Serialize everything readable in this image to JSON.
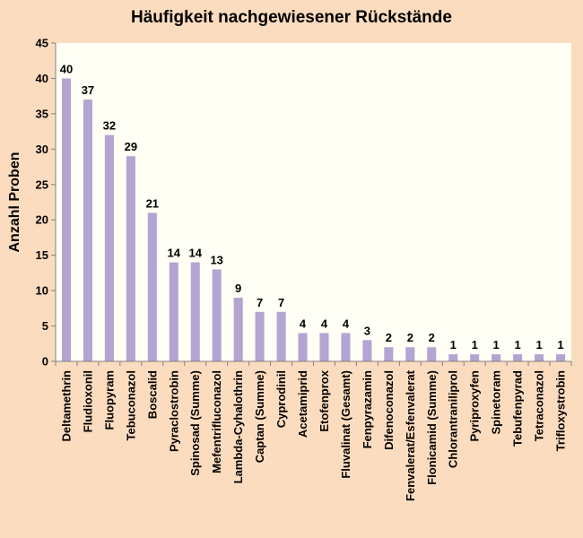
{
  "chart_data": {
    "type": "bar",
    "title": "Häufigkeit nachgewiesener Rückstände",
    "xlabel": "",
    "ylabel": "Anzahl Proben",
    "ylim": [
      0,
      45
    ],
    "yticks": [
      0,
      5,
      10,
      15,
      20,
      25,
      30,
      35,
      40,
      45
    ],
    "grid": false,
    "legend": "none",
    "categories": [
      "Deltamethrin",
      "Fludioxonil",
      "Fluopyram",
      "Tebuconazol",
      "Boscalid",
      "Pyraclostrobin",
      "Spinosad (Summe)",
      "Mefentrifluconazol",
      "Lambda-Cyhalothrin",
      "Captan (Summe)",
      "Cyprodinil",
      "Acetamiprid",
      "Etofenprox",
      "Fluvalinat (Gesamt)",
      "Fenpyrazamin",
      "Difenoconazol",
      "Fenvalerat/Esfenvalerat",
      "Flonicamid (Summe)",
      "Chlorantraniliprol",
      "Pyriproxyfen",
      "Spinetoram",
      "Tebufenpyrad",
      "Tetraconazol",
      "Trifloxystrobin"
    ],
    "values": [
      40,
      37,
      32,
      29,
      21,
      14,
      14,
      13,
      9,
      7,
      7,
      4,
      4,
      4,
      3,
      2,
      2,
      2,
      1,
      1,
      1,
      1,
      1,
      1
    ],
    "data_labels": [
      "40",
      "37",
      "32",
      "29",
      "21",
      "14",
      "14",
      "13",
      "9",
      "7",
      "7",
      "4",
      "4",
      "4",
      "3",
      "2",
      "2",
      "2",
      "1",
      "1",
      "1",
      "1",
      "1",
      "1"
    ]
  },
  "colors": {
    "page_background": "#fcdcbe",
    "plot_background": "#fffff5",
    "bar": "#b3a4d2",
    "axis": "#808080"
  }
}
